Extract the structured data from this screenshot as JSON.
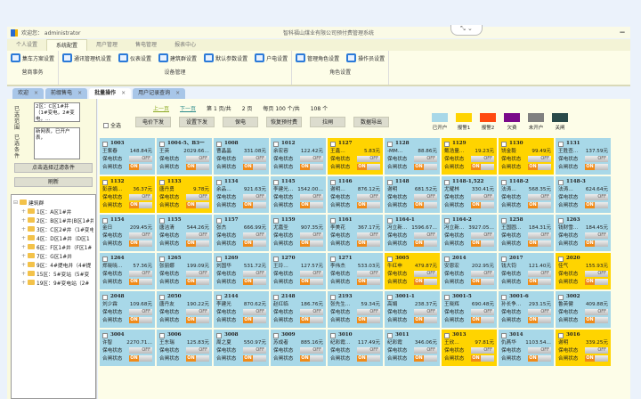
{
  "topbar": {
    "welcome": "欢迎您： administrator",
    "title": "智科福山煤业有限公司预付费管理系统",
    "collapse": "⤡ ⌄",
    "minimize": "—"
  },
  "menu_tabs": [
    "个人设置",
    "系统配置",
    "用户管理",
    "售电管理",
    "报表中心"
  ],
  "ribbon": [
    {
      "title": "营商事务",
      "items": [
        "集车方案设置"
      ]
    },
    {
      "title": "设备管理",
      "items": [
        "通讯管理机设置",
        "仪表设置",
        "建筑群设置",
        "默认参数设置",
        "户电设置"
      ]
    },
    {
      "title": "角色设置",
      "items": [
        "管理角色设置",
        "操作员设置"
      ]
    }
  ],
  "doc_tabs": [
    {
      "label": "欢迎"
    },
    {
      "label": "前缀售电"
    },
    {
      "label": "批量操作"
    },
    {
      "label": "用户记录查询"
    }
  ],
  "left": {
    "scope_label": "已选范围",
    "scope_value": "2区：C区1#井（1#变电，2#变电，…",
    "cond_label": "已选条件",
    "cond_value": "新网表，已开户表，",
    "filter_button": "点击选择过滤条件",
    "refresh_button": "刷新",
    "tree": {
      "root": "建筑群",
      "children": [
        "1区：A区1#井",
        "2区：B区1#井(B区1#井",
        "3区：C区2#井（1#变电",
        "4区：D区1#井（D区1",
        "6区：F区1#井（F区1#",
        "7区：G区1#井",
        "9区：4#提电井（4#提",
        "15区：5#变站（5#变",
        "19区：9#变电站（2#"
      ]
    }
  },
  "pager": {
    "prev": "上一页",
    "next": "下一页",
    "page": "第 1 页/共",
    "pages": "2 页",
    "per_page": "每页 100 个/共",
    "total": "108 个"
  },
  "select_all": "全选",
  "actions": [
    "电价下发",
    "设置下发",
    "保电",
    "恢复预付费",
    "拉闸",
    "数据导出"
  ],
  "legend": [
    {
      "label": "已开户",
      "color": "#a8d8e8"
    },
    {
      "label": "报警1",
      "color": "#ffd400"
    },
    {
      "label": "报警2",
      "color": "#ff4a10"
    },
    {
      "label": "欠费",
      "color": "#7a0a8a"
    },
    {
      "label": "未开户",
      "color": "#808080"
    },
    {
      "label": "关闸",
      "color": "#2a4a4a"
    }
  ],
  "card_labels": {
    "protect": "保电状态",
    "switch": "合闸状态",
    "off": "OFF",
    "on": "ON"
  },
  "cards": [
    {
      "id": "1003",
      "name": "王紫春",
      "amount": "148.84元",
      "status": "normal"
    },
    {
      "id": "1004-5、B3一",
      "name": "王英",
      "amount": "2029.66…",
      "status": "normal"
    },
    {
      "id": "1008",
      "name": "曹晶晶",
      "amount": "331.08元",
      "status": "normal"
    },
    {
      "id": "1012",
      "name": "余宏容",
      "amount": "122.42元",
      "status": "normal"
    },
    {
      "id": "1127",
      "name": "王鑫…",
      "amount": "5.83元",
      "status": "alarm1"
    },
    {
      "id": "1128",
      "name": "-MM…",
      "amount": "88.86元",
      "status": "normal"
    },
    {
      "id": "1129",
      "name": "戴浩量…",
      "amount": "19.23元",
      "status": "alarm1"
    },
    {
      "id": "1130",
      "name": "饶金毅",
      "amount": "99.49元",
      "status": "alarm1"
    },
    {
      "id": "1131",
      "name": "王胜查…",
      "amount": "137.59元",
      "status": "normal"
    },
    {
      "id": "1132",
      "name": "彭彦娟…",
      "amount": "36.37元",
      "status": "alarm1"
    },
    {
      "id": "1133",
      "name": "唐丹勇",
      "amount": "9.78元",
      "status": "alarm1"
    },
    {
      "id": "1134",
      "name": "余品…",
      "amount": "921.63元",
      "status": "normal"
    },
    {
      "id": "1145",
      "name": "李建光…",
      "amount": "1542.00…",
      "status": "normal"
    },
    {
      "id": "1146",
      "name": "谢明…",
      "amount": "876.12元",
      "status": "normal"
    },
    {
      "id": "1148",
      "name": "谢明",
      "amount": "681.52元",
      "status": "normal"
    },
    {
      "id": "1148-1,522",
      "name": "尤耀林",
      "amount": "330.41元",
      "status": "normal"
    },
    {
      "id": "1148-2",
      "name": "法涛…",
      "amount": "568.35元",
      "status": "normal"
    },
    {
      "id": "1148-3",
      "name": "法涛…",
      "amount": "624.64元",
      "status": "normal"
    },
    {
      "id": "1154",
      "name": "金日",
      "amount": "209.45元",
      "status": "normal"
    },
    {
      "id": "1155",
      "name": "唐洁清",
      "amount": "544.26元",
      "status": "normal"
    },
    {
      "id": "1157",
      "name": "张杰",
      "amount": "666.99元",
      "status": "normal"
    },
    {
      "id": "1159",
      "name": "尤嘉圣",
      "amount": "907.35元",
      "status": "normal"
    },
    {
      "id": "1161",
      "name": "李美花",
      "amount": "367.17元",
      "status": "normal"
    },
    {
      "id": "1164-1",
      "name": "冯立新…",
      "amount": "1596.67…",
      "status": "normal"
    },
    {
      "id": "1164-2",
      "name": "冯立新…",
      "amount": "3927.05…",
      "status": "normal"
    },
    {
      "id": "1258",
      "name": "王国圆…",
      "amount": "184.31元",
      "status": "normal"
    },
    {
      "id": "1263",
      "name": "钱财雪…",
      "amount": "184.45元",
      "status": "normal"
    },
    {
      "id": "1264",
      "name": "郑晓晓…",
      "amount": "57.36元",
      "status": "normal"
    },
    {
      "id": "1265",
      "name": "张丽娜",
      "amount": "199.09元",
      "status": "normal"
    },
    {
      "id": "1269",
      "name": "刘国华",
      "amount": "531.72元",
      "status": "normal"
    },
    {
      "id": "1270",
      "name": "王玲…",
      "amount": "127.57元",
      "status": "normal"
    },
    {
      "id": "1271",
      "name": "李伟杰",
      "amount": "533.03元",
      "status": "normal"
    },
    {
      "id": "3005",
      "name": "牛红申",
      "amount": "479.87元",
      "status": "alarm1"
    },
    {
      "id": "2014",
      "name": "安恩宏",
      "amount": "202.95元",
      "status": "normal"
    },
    {
      "id": "2017",
      "name": "钱大钧",
      "amount": "121.40元",
      "status": "normal"
    },
    {
      "id": "2020",
      "name": "佳气",
      "amount": "155.93元",
      "status": "alarm1"
    },
    {
      "id": "2048",
      "name": "刘少霖",
      "amount": "109.68元",
      "status": "normal"
    },
    {
      "id": "2050",
      "name": "唐丹友",
      "amount": "190.22元",
      "status": "normal"
    },
    {
      "id": "2144",
      "name": "李建光",
      "amount": "870.62元",
      "status": "normal"
    },
    {
      "id": "2148",
      "name": "赵红临",
      "amount": "186.76元",
      "status": "normal"
    },
    {
      "id": "2193",
      "name": "张先生…",
      "amount": "59.34元",
      "status": "normal"
    },
    {
      "id": "3001-1",
      "name": "高娟",
      "amount": "238.37元",
      "status": "normal"
    },
    {
      "id": "3001-5",
      "name": "王晓辉",
      "amount": "690.48元",
      "status": "normal"
    },
    {
      "id": "3001-6",
      "name": "孙长争…",
      "amount": "293.15元",
      "status": "normal"
    },
    {
      "id": "3002",
      "name": "鲁英健",
      "amount": "409.88元",
      "status": "normal"
    },
    {
      "id": "3004",
      "name": "许智",
      "amount": "2270.71…",
      "status": "normal"
    },
    {
      "id": "3006",
      "name": "王东瑞",
      "amount": "125.83元",
      "status": "normal"
    },
    {
      "id": "3008",
      "name": "周之夏",
      "amount": "550.97元",
      "status": "normal"
    },
    {
      "id": "3009",
      "name": "苏成者",
      "amount": "885.16元",
      "status": "normal"
    },
    {
      "id": "3010",
      "name": "纪彩霞…",
      "amount": "117.49元",
      "status": "normal"
    },
    {
      "id": "3011",
      "name": "纪彩霞",
      "amount": "346.06元",
      "status": "normal"
    },
    {
      "id": "3013",
      "name": "王欣…",
      "amount": "97.81元",
      "status": "alarm1"
    },
    {
      "id": "3014",
      "name": "仇燕华",
      "amount": "1103.54…",
      "status": "normal"
    },
    {
      "id": "3016",
      "name": "谢明",
      "amount": "339.25元",
      "status": "alarm1"
    }
  ]
}
